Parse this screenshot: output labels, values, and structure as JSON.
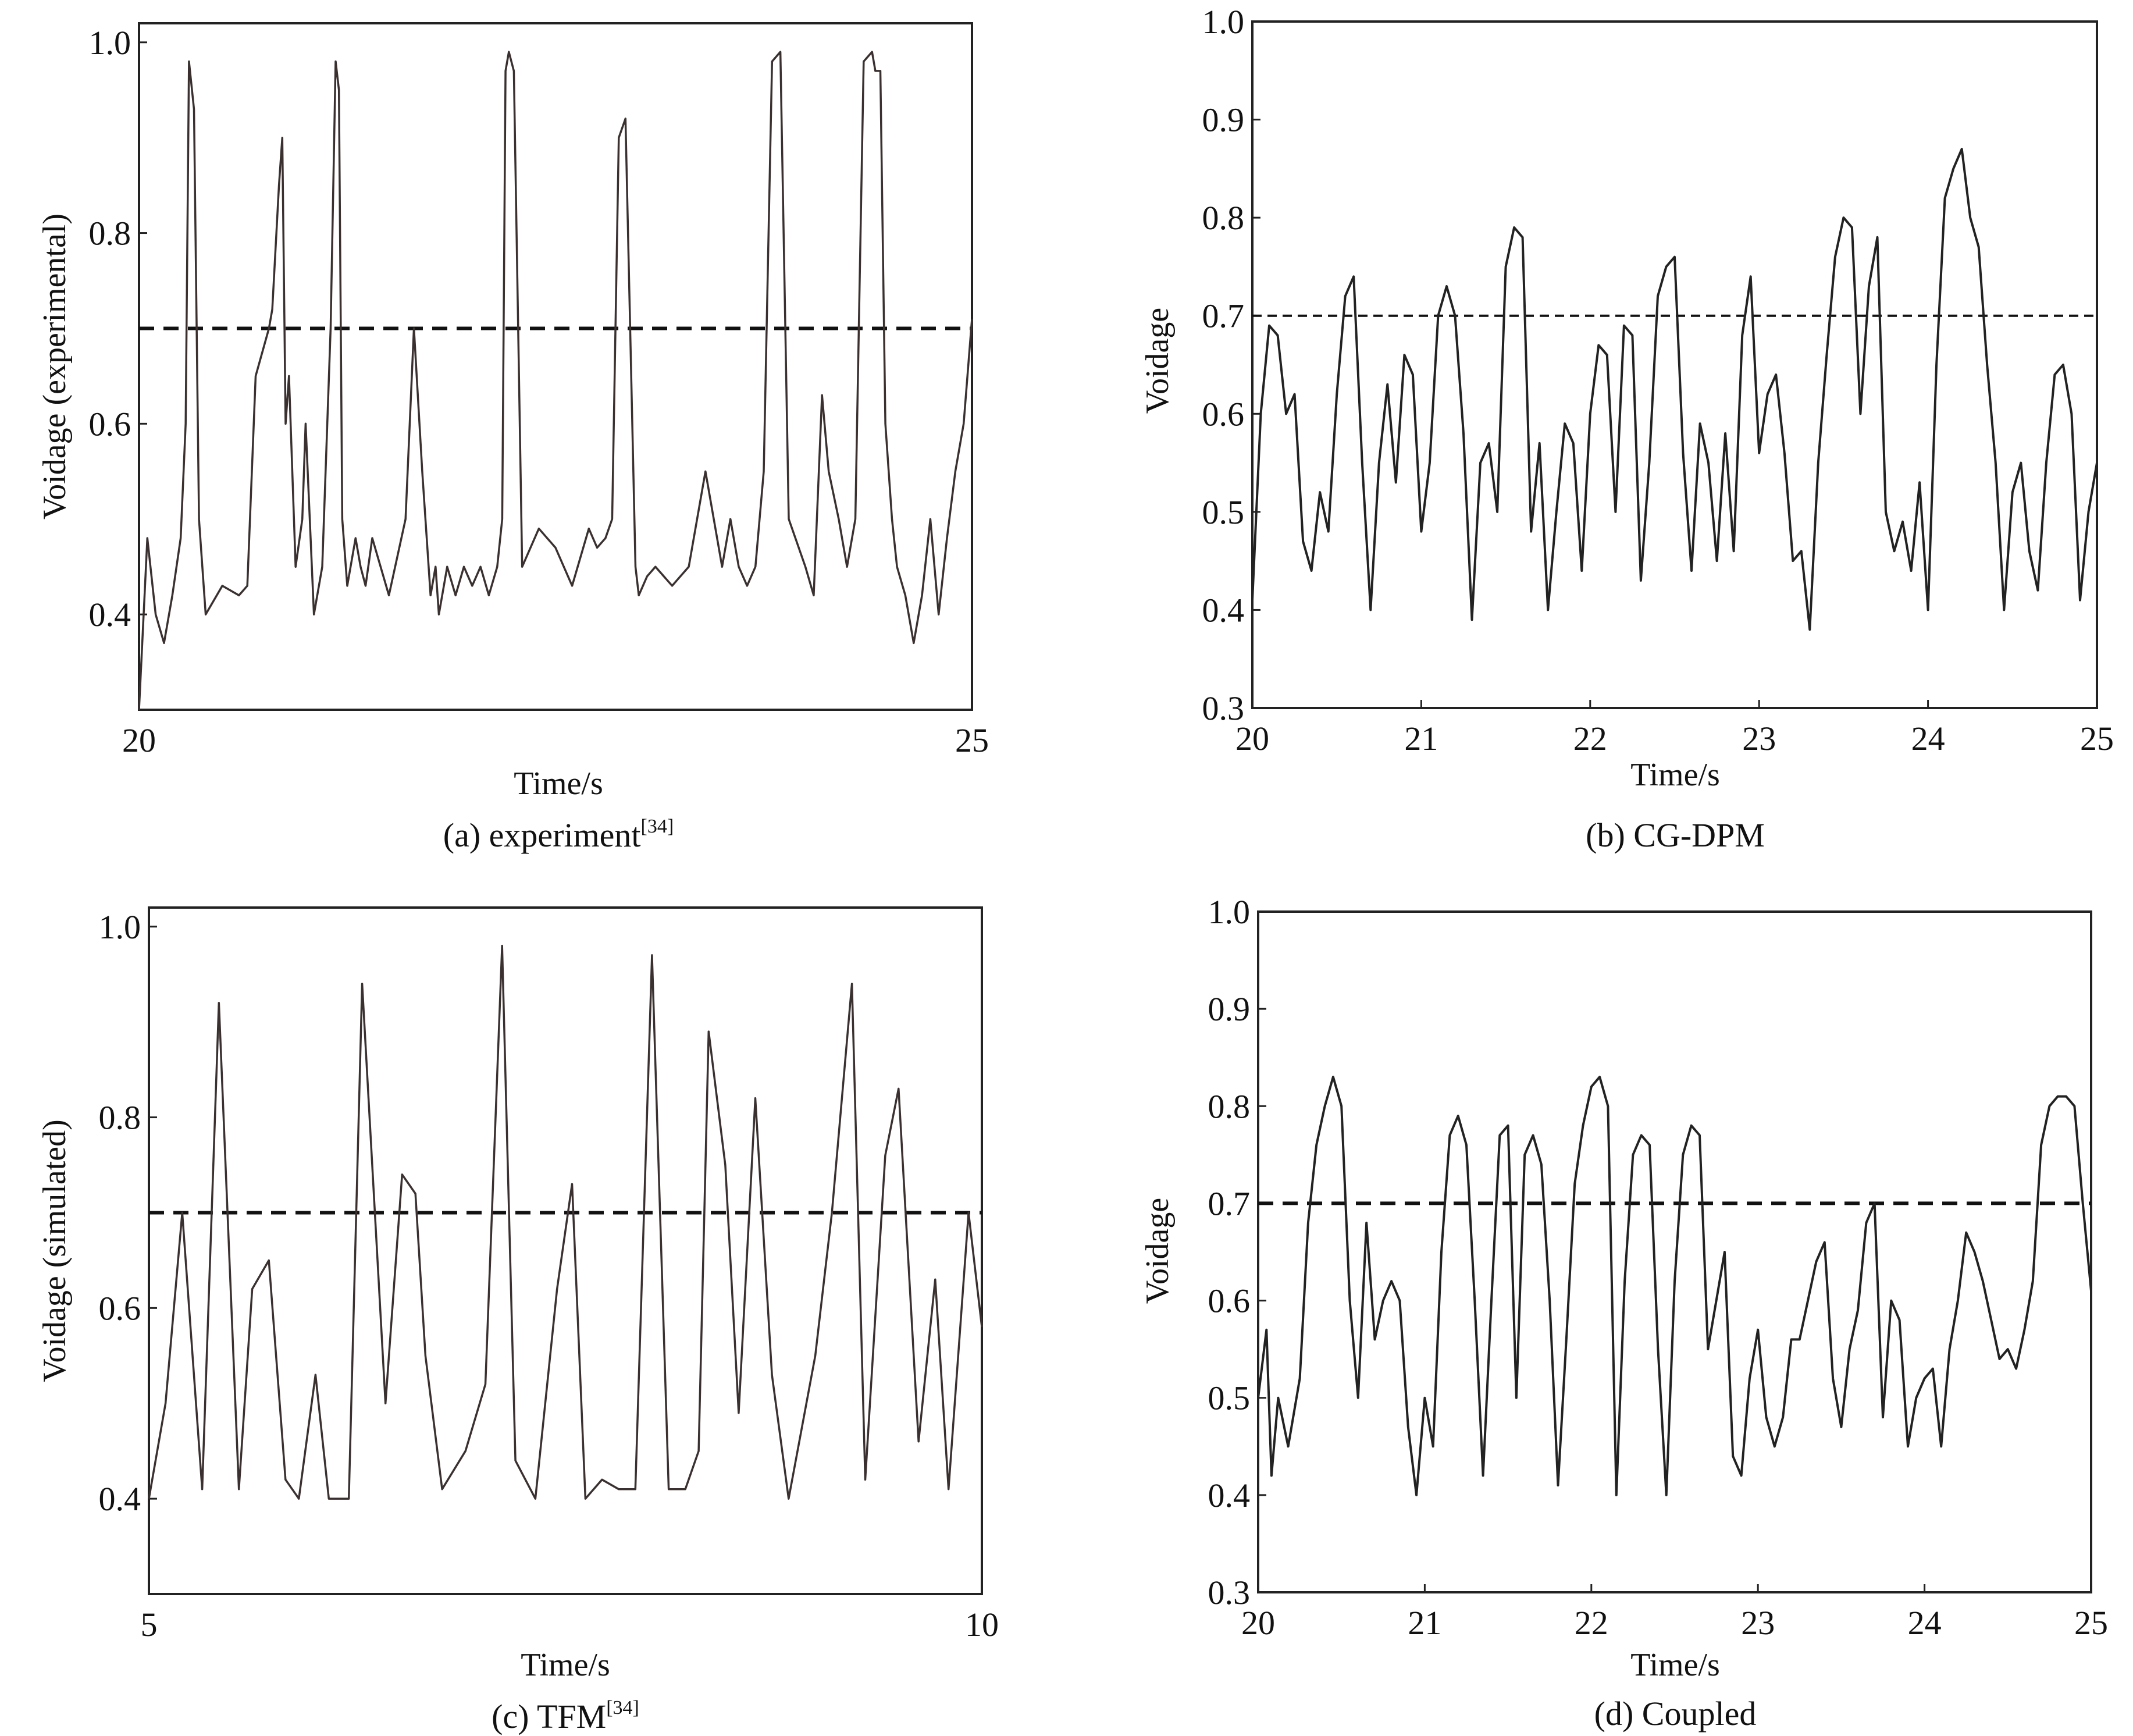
{
  "chart_data": [
    {
      "id": "a",
      "type": "line",
      "caption": "(a) experiment",
      "caption_ref": "[34]",
      "xlabel": "Time/s",
      "ylabel": "Voidage (experimental)",
      "xlim": [
        20,
        25
      ],
      "ylim": [
        0.3,
        1.02
      ],
      "xticks": [
        20,
        25
      ],
      "xtick_labels": [
        "20",
        "25"
      ],
      "yticks": [
        0.4,
        0.6,
        0.8,
        1.0
      ],
      "ytick_labels": [
        "0.4",
        "0.6",
        "0.8",
        "1.0"
      ],
      "threshold": 0.7,
      "series": [
        {
          "name": "voidage",
          "x": [
            20.0,
            20.05,
            20.1,
            20.15,
            20.2,
            20.25,
            20.28,
            20.3,
            20.33,
            20.36,
            20.4,
            20.5,
            20.6,
            20.65,
            20.7,
            20.78,
            20.8,
            20.84,
            20.86,
            20.88,
            20.9,
            20.94,
            20.98,
            21.0,
            21.05,
            21.1,
            21.15,
            21.18,
            21.2,
            21.22,
            21.25,
            21.3,
            21.33,
            21.36,
            21.4,
            21.5,
            21.6,
            21.65,
            21.7,
            21.75,
            21.78,
            21.8,
            21.85,
            21.9,
            21.95,
            22.0,
            22.05,
            22.1,
            22.15,
            22.18,
            22.2,
            22.22,
            22.25,
            22.3,
            22.4,
            22.5,
            22.6,
            22.7,
            22.75,
            22.8,
            22.84,
            22.88,
            22.92,
            22.98,
            23.0,
            23.05,
            23.1,
            23.2,
            23.3,
            23.4,
            23.45,
            23.5,
            23.55,
            23.6,
            23.65,
            23.7,
            23.75,
            23.8,
            23.85,
            23.9,
            24.0,
            24.05,
            24.1,
            24.14,
            24.2,
            24.25,
            24.3,
            24.35,
            24.4,
            24.42,
            24.45,
            24.48,
            24.52,
            24.55,
            24.6,
            24.65,
            24.7,
            24.75,
            24.8,
            24.85,
            24.9,
            24.95,
            25.0
          ],
          "y": [
            0.3,
            0.48,
            0.4,
            0.37,
            0.42,
            0.48,
            0.6,
            0.98,
            0.93,
            0.5,
            0.4,
            0.43,
            0.42,
            0.43,
            0.65,
            0.7,
            0.72,
            0.85,
            0.9,
            0.6,
            0.65,
            0.45,
            0.5,
            0.6,
            0.4,
            0.45,
            0.7,
            0.98,
            0.95,
            0.5,
            0.43,
            0.48,
            0.45,
            0.43,
            0.48,
            0.42,
            0.5,
            0.7,
            0.55,
            0.42,
            0.45,
            0.4,
            0.45,
            0.42,
            0.45,
            0.43,
            0.45,
            0.42,
            0.45,
            0.5,
            0.97,
            0.99,
            0.97,
            0.45,
            0.49,
            0.47,
            0.43,
            0.49,
            0.47,
            0.48,
            0.5,
            0.9,
            0.92,
            0.45,
            0.42,
            0.44,
            0.45,
            0.43,
            0.45,
            0.55,
            0.5,
            0.45,
            0.5,
            0.45,
            0.43,
            0.45,
            0.55,
            0.98,
            0.99,
            0.5,
            0.45,
            0.42,
            0.63,
            0.55,
            0.5,
            0.45,
            0.5,
            0.98,
            0.99,
            0.97,
            0.97,
            0.6,
            0.5,
            0.45,
            0.42,
            0.37,
            0.42,
            0.5,
            0.4,
            0.48,
            0.55,
            0.6,
            0.71
          ]
        }
      ]
    },
    {
      "id": "b",
      "type": "line",
      "caption": "(b) CG-DPM",
      "xlabel": "Time/s",
      "ylabel": "Voidage",
      "xlim": [
        20,
        25
      ],
      "ylim": [
        0.3,
        1.0
      ],
      "xticks": [
        20,
        21,
        22,
        23,
        24,
        25
      ],
      "xtick_labels": [
        "20",
        "21",
        "22",
        "23",
        "24",
        "25"
      ],
      "yticks": [
        0.3,
        0.4,
        0.5,
        0.6,
        0.7,
        0.8,
        0.9,
        1.0
      ],
      "ytick_labels": [
        "0.3",
        "0.4",
        "0.5",
        "0.6",
        "0.7",
        "0.8",
        "0.9",
        "1.0"
      ],
      "threshold": 0.7,
      "series": [
        {
          "name": "voidage",
          "x": [
            20.0,
            20.05,
            20.1,
            20.15,
            20.2,
            20.25,
            20.3,
            20.35,
            20.4,
            20.45,
            20.5,
            20.55,
            20.6,
            20.65,
            20.7,
            20.75,
            20.8,
            20.85,
            20.9,
            20.95,
            21.0,
            21.05,
            21.1,
            21.15,
            21.2,
            21.25,
            21.3,
            21.35,
            21.4,
            21.45,
            21.5,
            21.55,
            21.6,
            21.65,
            21.7,
            21.75,
            21.8,
            21.85,
            21.9,
            21.95,
            22.0,
            22.05,
            22.1,
            22.15,
            22.2,
            22.25,
            22.3,
            22.35,
            22.4,
            22.45,
            22.5,
            22.55,
            22.6,
            22.65,
            22.7,
            22.75,
            22.8,
            22.85,
            22.9,
            22.95,
            23.0,
            23.05,
            23.1,
            23.15,
            23.2,
            23.25,
            23.3,
            23.35,
            23.4,
            23.45,
            23.5,
            23.55,
            23.6,
            23.65,
            23.7,
            23.75,
            23.8,
            23.85,
            23.9,
            23.95,
            24.0,
            24.05,
            24.1,
            24.15,
            24.2,
            24.25,
            24.3,
            24.35,
            24.4,
            24.45,
            24.5,
            24.55,
            24.6,
            24.65,
            24.7,
            24.75,
            24.8,
            24.85,
            24.9,
            24.95,
            25.0
          ],
          "y": [
            0.41,
            0.6,
            0.69,
            0.68,
            0.6,
            0.62,
            0.47,
            0.44,
            0.52,
            0.48,
            0.62,
            0.72,
            0.74,
            0.55,
            0.4,
            0.55,
            0.63,
            0.53,
            0.66,
            0.64,
            0.48,
            0.55,
            0.7,
            0.73,
            0.7,
            0.58,
            0.39,
            0.55,
            0.57,
            0.5,
            0.75,
            0.79,
            0.78,
            0.48,
            0.57,
            0.4,
            0.5,
            0.59,
            0.57,
            0.44,
            0.6,
            0.67,
            0.66,
            0.5,
            0.69,
            0.68,
            0.43,
            0.55,
            0.72,
            0.75,
            0.76,
            0.56,
            0.44,
            0.59,
            0.55,
            0.45,
            0.58,
            0.46,
            0.68,
            0.74,
            0.56,
            0.62,
            0.64,
            0.56,
            0.45,
            0.46,
            0.38,
            0.55,
            0.66,
            0.76,
            0.8,
            0.79,
            0.6,
            0.73,
            0.78,
            0.5,
            0.46,
            0.49,
            0.44,
            0.53,
            0.4,
            0.65,
            0.82,
            0.85,
            0.87,
            0.8,
            0.77,
            0.65,
            0.55,
            0.4,
            0.52,
            0.55,
            0.46,
            0.42,
            0.55,
            0.64,
            0.65,
            0.6,
            0.41,
            0.5,
            0.55
          ]
        }
      ]
    },
    {
      "id": "c",
      "type": "line",
      "caption": "(c) TFM",
      "caption_ref": "[34]",
      "xlabel": "Time/s",
      "ylabel": "Voidage (simulated)",
      "xlim": [
        5,
        10
      ],
      "ylim": [
        0.3,
        1.02
      ],
      "xticks": [
        5,
        10
      ],
      "xtick_labels": [
        "5",
        "10"
      ],
      "yticks": [
        0.4,
        0.6,
        0.8,
        1.0
      ],
      "ytick_labels": [
        "0.4",
        "0.6",
        "0.8",
        "1.0"
      ],
      "threshold": 0.7,
      "series": [
        {
          "name": "voidage",
          "x": [
            5.0,
            5.1,
            5.2,
            5.32,
            5.42,
            5.54,
            5.62,
            5.72,
            5.82,
            5.9,
            6.0,
            6.08,
            6.2,
            6.28,
            6.42,
            6.52,
            6.6,
            6.66,
            6.76,
            6.9,
            7.02,
            7.12,
            7.2,
            7.32,
            7.45,
            7.54,
            7.62,
            7.72,
            7.82,
            7.92,
            8.02,
            8.12,
            8.22,
            8.3,
            8.36,
            8.46,
            8.54,
            8.64,
            8.74,
            8.84,
            9.0,
            9.1,
            9.22,
            9.3,
            9.42,
            9.5,
            9.62,
            9.72,
            9.8,
            9.92,
            10.0
          ],
          "y": [
            0.4,
            0.5,
            0.7,
            0.41,
            0.92,
            0.41,
            0.62,
            0.65,
            0.42,
            0.4,
            0.53,
            0.4,
            0.4,
            0.94,
            0.5,
            0.74,
            0.72,
            0.55,
            0.41,
            0.45,
            0.52,
            0.98,
            0.44,
            0.4,
            0.62,
            0.73,
            0.4,
            0.42,
            0.41,
            0.41,
            0.97,
            0.41,
            0.41,
            0.45,
            0.89,
            0.75,
            0.49,
            0.82,
            0.53,
            0.4,
            0.55,
            0.7,
            0.94,
            0.42,
            0.76,
            0.83,
            0.46,
            0.63,
            0.41,
            0.7,
            0.58
          ]
        }
      ]
    },
    {
      "id": "d",
      "type": "line",
      "caption": "(d) Coupled",
      "xlabel": "Time/s",
      "ylabel": "Voidage",
      "xlim": [
        20,
        25
      ],
      "ylim": [
        0.3,
        1.0
      ],
      "xticks": [
        20,
        21,
        22,
        23,
        24,
        25
      ],
      "xtick_labels": [
        "20",
        "21",
        "22",
        "23",
        "24",
        "25"
      ],
      "yticks": [
        0.3,
        0.4,
        0.5,
        0.6,
        0.7,
        0.8,
        0.9,
        1.0
      ],
      "ytick_labels": [
        "0.3",
        "0.4",
        "0.5",
        "0.6",
        "0.7",
        "0.8",
        "0.9",
        "1.0"
      ],
      "threshold": 0.7,
      "series": [
        {
          "name": "voidage",
          "x": [
            20.0,
            20.05,
            20.08,
            20.12,
            20.18,
            20.25,
            20.3,
            20.35,
            20.4,
            20.45,
            20.5,
            20.55,
            20.6,
            20.65,
            20.7,
            20.75,
            20.8,
            20.85,
            20.9,
            20.95,
            21.0,
            21.05,
            21.1,
            21.15,
            21.2,
            21.25,
            21.3,
            21.35,
            21.4,
            21.45,
            21.5,
            21.55,
            21.6,
            21.65,
            21.7,
            21.75,
            21.8,
            21.85,
            21.9,
            21.95,
            22.0,
            22.05,
            22.1,
            22.15,
            22.2,
            22.25,
            22.3,
            22.35,
            22.4,
            22.45,
            22.5,
            22.55,
            22.6,
            22.65,
            22.7,
            22.75,
            22.8,
            22.85,
            22.9,
            22.95,
            23.0,
            23.05,
            23.1,
            23.15,
            23.2,
            23.25,
            23.3,
            23.35,
            23.4,
            23.45,
            23.5,
            23.55,
            23.6,
            23.65,
            23.7,
            23.75,
            23.8,
            23.85,
            23.9,
            23.95,
            24.0,
            24.05,
            24.1,
            24.15,
            24.2,
            24.25,
            24.3,
            24.35,
            24.4,
            24.45,
            24.5,
            24.55,
            24.6,
            24.65,
            24.7,
            24.75,
            24.8,
            24.85,
            24.9,
            24.95,
            25.0
          ],
          "y": [
            0.5,
            0.57,
            0.42,
            0.5,
            0.45,
            0.52,
            0.68,
            0.76,
            0.8,
            0.83,
            0.8,
            0.6,
            0.5,
            0.68,
            0.56,
            0.6,
            0.62,
            0.6,
            0.47,
            0.4,
            0.5,
            0.45,
            0.65,
            0.77,
            0.79,
            0.76,
            0.6,
            0.42,
            0.6,
            0.77,
            0.78,
            0.5,
            0.75,
            0.77,
            0.74,
            0.6,
            0.41,
            0.56,
            0.72,
            0.78,
            0.82,
            0.83,
            0.8,
            0.4,
            0.62,
            0.75,
            0.77,
            0.76,
            0.55,
            0.4,
            0.62,
            0.75,
            0.78,
            0.77,
            0.55,
            0.6,
            0.65,
            0.44,
            0.42,
            0.52,
            0.57,
            0.48,
            0.45,
            0.48,
            0.56,
            0.56,
            0.6,
            0.64,
            0.66,
            0.52,
            0.47,
            0.55,
            0.59,
            0.68,
            0.7,
            0.48,
            0.6,
            0.58,
            0.45,
            0.5,
            0.52,
            0.53,
            0.45,
            0.55,
            0.6,
            0.67,
            0.65,
            0.62,
            0.58,
            0.54,
            0.55,
            0.53,
            0.57,
            0.62,
            0.76,
            0.8,
            0.81,
            0.81,
            0.8,
            0.7,
            0.61
          ]
        }
      ]
    }
  ]
}
